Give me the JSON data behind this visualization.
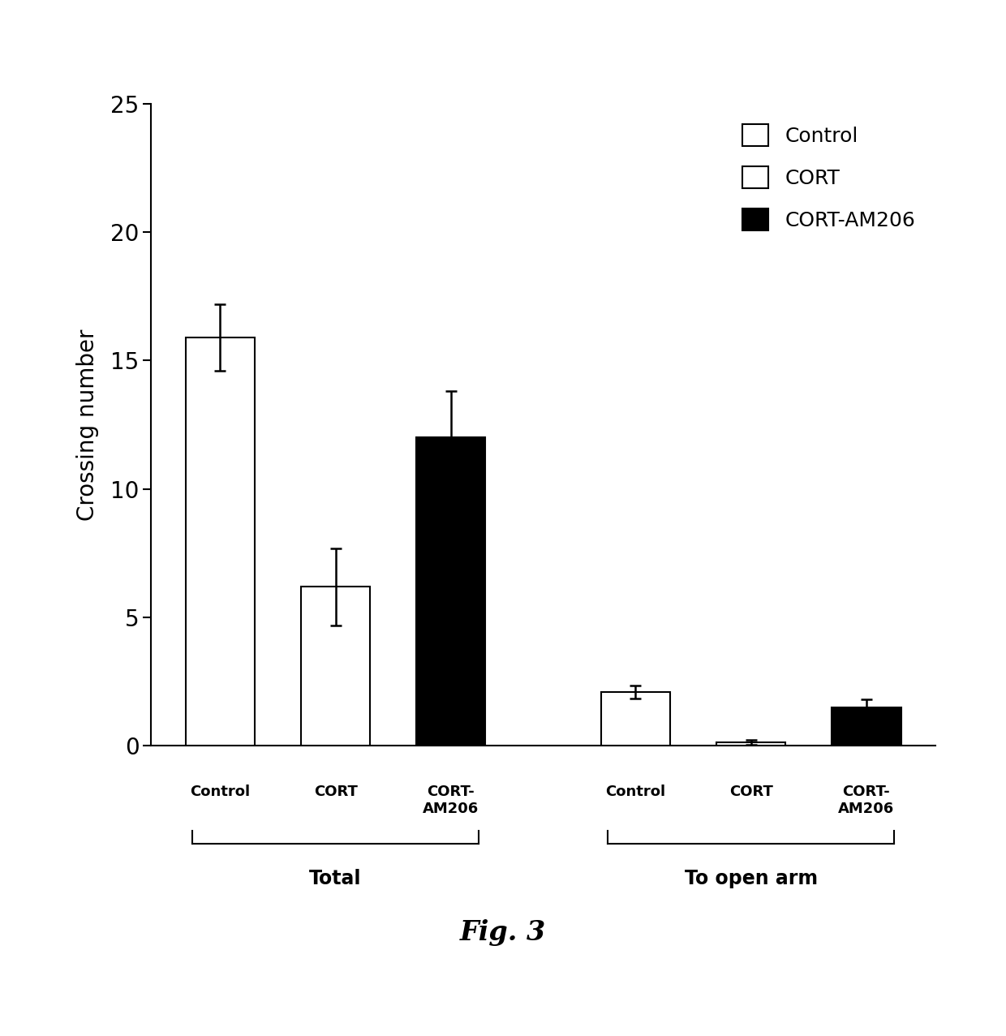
{
  "groups": [
    "Total",
    "To open arm"
  ],
  "values": {
    "Total": [
      15.9,
      6.2,
      12.0
    ],
    "To open arm": [
      2.1,
      0.15,
      1.5
    ]
  },
  "errors": {
    "Total": [
      1.3,
      1.5,
      1.8
    ],
    "To open arm": [
      0.25,
      0.1,
      0.3
    ]
  },
  "bar_colors": [
    "#ffffff",
    "#ffffff",
    "#000000"
  ],
  "bar_edgecolor": "#000000",
  "ylabel": "Crossing number",
  "ylim": [
    0,
    25
  ],
  "yticks": [
    0,
    5,
    10,
    15,
    20,
    25
  ],
  "legend_labels": [
    "Control",
    "CORT",
    "CORT-AM206"
  ],
  "legend_colors": [
    "#ffffff",
    "#ffffff",
    "#000000"
  ],
  "group_labels": [
    "Total",
    "To open arm"
  ],
  "figure_caption": "Fig. 3",
  "bar_width": 0.6,
  "cat_labels": [
    "Control",
    "CORT",
    "CORT-\nAM206",
    "Control",
    "CORT",
    "CORT-\nAM206"
  ]
}
